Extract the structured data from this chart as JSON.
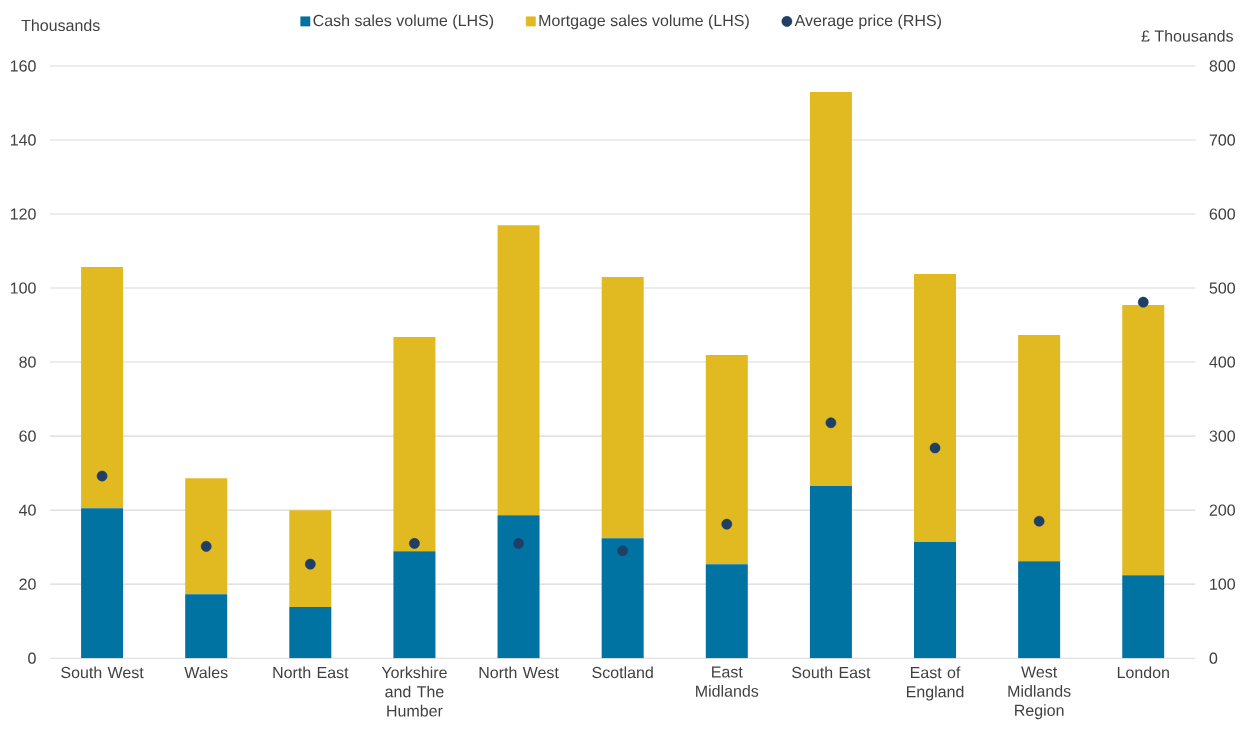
{
  "chart_data": {
    "type": "bar",
    "stacked": true,
    "ylabel": "Thousands",
    "y2label": "£ Thousands",
    "categories": [
      "South West",
      "Wales",
      "North East",
      "Yorkshire and The Humber",
      "North West",
      "Scotland",
      "East Midlands",
      "South East",
      "East of England",
      "West Midlands Region",
      "London"
    ],
    "series": [
      {
        "name": "Cash sales volume (LHS)",
        "color": "#0073a3",
        "values": [
          40.5,
          17.3,
          13.8,
          28.9,
          38.6,
          32.4,
          25.4,
          46.5,
          31.4,
          26.2,
          22.4
        ]
      },
      {
        "name": "Mortgage sales volume (LHS)",
        "color": "#e1ba22",
        "values": [
          65.2,
          31.3,
          26.2,
          57.9,
          78.4,
          70.6,
          56.5,
          106.5,
          72.4,
          61.1,
          73.0
        ]
      },
      {
        "name": "Average price (RHS)",
        "type": "scatter",
        "axis": "y2",
        "marker": "circle",
        "color": "#1f3f66",
        "values": [
          246,
          151,
          127,
          155,
          155,
          145,
          181,
          318,
          284,
          185,
          481
        ]
      }
    ],
    "ylim": [
      0,
      160
    ],
    "yticks": [
      0,
      20,
      40,
      60,
      80,
      100,
      120,
      140,
      160
    ],
    "y2lim": [
      0,
      800
    ],
    "y2ticks": [
      0,
      100,
      200,
      300,
      400,
      500,
      600,
      700,
      800
    ],
    "grid": "y",
    "legend": "top"
  }
}
